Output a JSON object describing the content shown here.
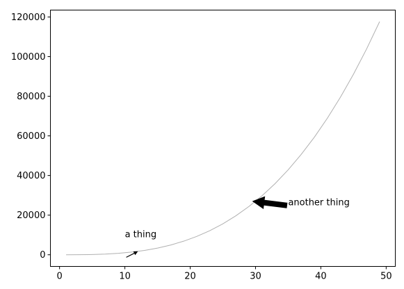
{
  "chart_data": {
    "type": "line",
    "title": "",
    "xlabel": "",
    "ylabel": "",
    "xlim": [
      -1.4,
      51.4
    ],
    "ylim": [
      -5880,
      123480
    ],
    "xticks": [
      0,
      10,
      20,
      30,
      40,
      50
    ],
    "yticks": [
      0,
      20000,
      40000,
      60000,
      80000,
      100000,
      120000
    ],
    "xtick_labels": [
      "0",
      "10",
      "20",
      "30",
      "40",
      "50"
    ],
    "ytick_labels": [
      "0",
      "20000",
      "40000",
      "60000",
      "80000",
      "100000",
      "120000"
    ],
    "grid": false,
    "legend": "none",
    "series": [
      {
        "color": "#b0b0b0",
        "x": [
          1,
          3,
          5,
          7,
          9,
          11,
          13,
          15,
          17,
          19,
          21,
          23,
          25,
          27,
          29,
          31,
          33,
          35,
          37,
          39,
          41,
          43,
          45,
          47,
          49
        ],
        "y": [
          1,
          27,
          125,
          343,
          729,
          1331,
          2197,
          3375,
          4913,
          6859,
          9261,
          12167,
          15625,
          19683,
          24389,
          29791,
          35937,
          42875,
          50653,
          59319,
          68921,
          79507,
          91125,
          103823,
          117649
        ]
      }
    ],
    "annotations": [
      {
        "text": "a thing",
        "point": [
          12,
          1728
        ],
        "text_at": [
          10,
          8880
        ],
        "arrow_style": "thin",
        "color": "#000000"
      },
      {
        "text": "another thing",
        "point": [
          29.6,
          27000
        ],
        "text_at": [
          35,
          27000
        ],
        "arrow_style": "fat",
        "color": "#000000"
      }
    ]
  }
}
